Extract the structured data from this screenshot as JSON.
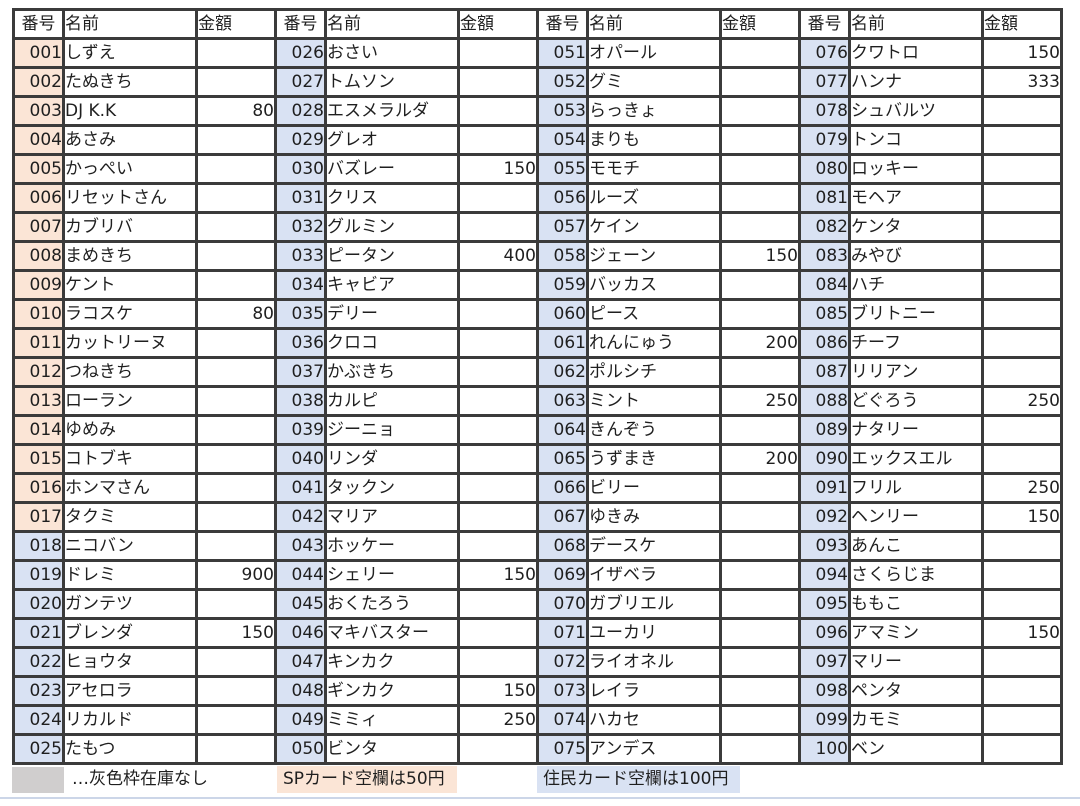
{
  "table": {
    "headers": {
      "number": "番号",
      "name": "名前",
      "price": "金額"
    },
    "sp_last_number": 17,
    "row_format": [
      "number",
      "name",
      "price",
      "out_of_stock"
    ],
    "rows": [
      [
        "001",
        "しずえ",
        "",
        false
      ],
      [
        "002",
        "たぬきち",
        "",
        false
      ],
      [
        "003",
        "DJ K.K",
        "80",
        false
      ],
      [
        "004",
        "あさみ",
        "",
        false
      ],
      [
        "005",
        "かっぺい",
        "",
        true
      ],
      [
        "006",
        "リセットさん",
        "",
        true
      ],
      [
        "007",
        "カブリバ",
        "",
        false
      ],
      [
        "008",
        "まめきち",
        "",
        false
      ],
      [
        "009",
        "ケント",
        "",
        false
      ],
      [
        "010",
        "ラコスケ",
        "80",
        false
      ],
      [
        "011",
        "カットリーヌ",
        "",
        false
      ],
      [
        "012",
        "つねきち",
        "",
        false
      ],
      [
        "013",
        "ローラン",
        "",
        false
      ],
      [
        "014",
        "ゆめみ",
        "",
        false
      ],
      [
        "015",
        "コトブキ",
        "",
        false
      ],
      [
        "016",
        "ホンマさん",
        "",
        true
      ],
      [
        "017",
        "タクミ",
        "",
        false
      ],
      [
        "018",
        "ニコバン",
        "",
        true
      ],
      [
        "019",
        "ドレミ",
        "900",
        false
      ],
      [
        "020",
        "ガンテツ",
        "",
        false
      ],
      [
        "021",
        "ブレンダ",
        "150",
        false
      ],
      [
        "022",
        "ヒョウタ",
        "",
        false
      ],
      [
        "023",
        "アセロラ",
        "",
        true
      ],
      [
        "024",
        "リカルド",
        "",
        true
      ],
      [
        "025",
        "たもつ",
        "",
        false
      ],
      [
        "026",
        "おさい",
        "",
        false
      ],
      [
        "027",
        "トムソン",
        "",
        true
      ],
      [
        "028",
        "エスメラルダ",
        "",
        false
      ],
      [
        "029",
        "グレオ",
        "",
        false
      ],
      [
        "030",
        "バズレー",
        "150",
        false
      ],
      [
        "031",
        "クリス",
        "",
        false
      ],
      [
        "032",
        "グルミン",
        "",
        true
      ],
      [
        "033",
        "ピータン",
        "400",
        false
      ],
      [
        "034",
        "キャビア",
        "",
        true
      ],
      [
        "035",
        "デリー",
        "",
        false
      ],
      [
        "036",
        "クロコ",
        "",
        false
      ],
      [
        "037",
        "かぶきち",
        "",
        true
      ],
      [
        "038",
        "カルピ",
        "",
        false
      ],
      [
        "039",
        "ジーニョ",
        "",
        false
      ],
      [
        "040",
        "リンダ",
        "",
        false
      ],
      [
        "041",
        "タックン",
        "",
        false
      ],
      [
        "042",
        "マリア",
        "",
        false
      ],
      [
        "043",
        "ホッケー",
        "",
        false
      ],
      [
        "044",
        "シェリー",
        "150",
        false
      ],
      [
        "045",
        "おくたろう",
        "",
        false
      ],
      [
        "046",
        "マキバスター",
        "",
        false
      ],
      [
        "047",
        "キンカク",
        "",
        true
      ],
      [
        "048",
        "ギンカク",
        "150",
        false
      ],
      [
        "049",
        "ミミィ",
        "250",
        false
      ],
      [
        "050",
        "ビンタ",
        "",
        true
      ],
      [
        "051",
        "オパール",
        "",
        false
      ],
      [
        "052",
        "グミ",
        "",
        true
      ],
      [
        "053",
        "らっきょ",
        "",
        false
      ],
      [
        "054",
        "まりも",
        "",
        false
      ],
      [
        "055",
        "モモチ",
        "",
        true
      ],
      [
        "056",
        "ルーズ",
        "",
        false
      ],
      [
        "057",
        "ケイン",
        "",
        false
      ],
      [
        "058",
        "ジェーン",
        "150",
        false
      ],
      [
        "059",
        "バッカス",
        "",
        false
      ],
      [
        "060",
        "ピース",
        "",
        false
      ],
      [
        "061",
        "れんにゅう",
        "200",
        false
      ],
      [
        "062",
        "ポルシチ",
        "",
        false
      ],
      [
        "063",
        "ミント",
        "250",
        false
      ],
      [
        "064",
        "きんぞう",
        "",
        false
      ],
      [
        "065",
        "うずまき",
        "200",
        false
      ],
      [
        "066",
        "ビリー",
        "",
        false
      ],
      [
        "067",
        "ゆきみ",
        "",
        true
      ],
      [
        "068",
        "デースケ",
        "",
        false
      ],
      [
        "069",
        "イザベラ",
        "",
        false
      ],
      [
        "070",
        "ガブリエル",
        "",
        false
      ],
      [
        "071",
        "ユーカリ",
        "",
        false
      ],
      [
        "072",
        "ライオネル",
        "",
        false
      ],
      [
        "073",
        "レイラ",
        "",
        false
      ],
      [
        "074",
        "ハカセ",
        "",
        false
      ],
      [
        "075",
        "アンデス",
        "",
        false
      ],
      [
        "076",
        "クワトロ",
        "150",
        false
      ],
      [
        "077",
        "ハンナ",
        "333",
        false
      ],
      [
        "078",
        "シュバルツ",
        "",
        true
      ],
      [
        "079",
        "トンコ",
        "",
        false
      ],
      [
        "080",
        "ロッキー",
        "",
        false
      ],
      [
        "081",
        "モヘア",
        "",
        false
      ],
      [
        "082",
        "ケンタ",
        "",
        false
      ],
      [
        "083",
        "みやび",
        "",
        false
      ],
      [
        "084",
        "ハチ",
        "",
        false
      ],
      [
        "085",
        "ブリトニー",
        "",
        false
      ],
      [
        "086",
        "チーフ",
        "",
        true
      ],
      [
        "087",
        "リリアン",
        "",
        true
      ],
      [
        "088",
        "どぐろう",
        "250",
        false
      ],
      [
        "089",
        "ナタリー",
        "",
        true
      ],
      [
        "090",
        "エックスエル",
        "",
        false
      ],
      [
        "091",
        "フリル",
        "250",
        false
      ],
      [
        "092",
        "ヘンリー",
        "150",
        false
      ],
      [
        "093",
        "あんこ",
        "",
        false
      ],
      [
        "094",
        "さくらじま",
        "",
        false
      ],
      [
        "095",
        "ももこ",
        "",
        true
      ],
      [
        "096",
        "アマミン",
        "150",
        false
      ],
      [
        "097",
        "マリー",
        "",
        true
      ],
      [
        "098",
        "ペンタ",
        "",
        true
      ],
      [
        "099",
        "カモミ",
        "",
        true
      ],
      [
        "100",
        "ベン",
        "",
        true
      ]
    ]
  },
  "legend": {
    "gray_note": "…灰色枠在庫なし",
    "sp_note": "SPカード空欄は50円",
    "resident_note": "住民カード空欄は100円"
  },
  "colors": {
    "sp_number_bg": "#fbe5d6",
    "resident_number_bg": "#d9e2f3",
    "out_of_stock_bg": "#d0cece",
    "border": "#3b3b3b",
    "sp_note_bg": "#fbe5d6",
    "resident_note_bg": "#d9e2f3"
  }
}
